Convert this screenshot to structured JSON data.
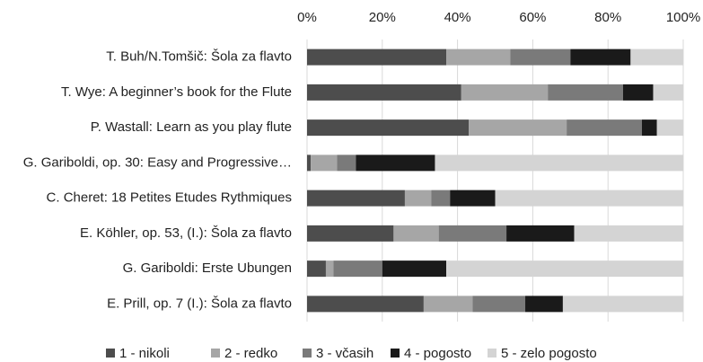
{
  "chart_data": {
    "type": "stacked_barh",
    "categories": [
      "T. Buh/N.Tomšič: Šola za flavto",
      "T. Wye: A beginner’s book for the Flute",
      "P. Wastall: Learn as you play flute",
      "G. Gariboldi, op. 30: Easy and Progressive…",
      "C. Cheret: 18 Petites Etudes Rythmiques",
      "E. Köhler, op. 53, (I.): Šola za flavto",
      "G. Gariboldi: Erste Ubungen",
      "E. Prill, op. 7 (I.): Šola za flavto"
    ],
    "series": [
      {
        "name": "1 - nikoli",
        "color": "#4d4d4d",
        "values": [
          37,
          41,
          43,
          1,
          26,
          23,
          5,
          31
        ]
      },
      {
        "name": "2 - redko",
        "color": "#a6a6a6",
        "values": [
          17,
          23,
          26,
          7,
          7,
          12,
          2,
          13
        ]
      },
      {
        "name": "3 - včasih",
        "color": "#7a7a7a",
        "values": [
          16,
          20,
          20,
          5,
          5,
          18,
          13,
          14
        ]
      },
      {
        "name": "4 - pogosto",
        "color": "#1a1a1a",
        "values": [
          16,
          8,
          4,
          21,
          12,
          18,
          17,
          10
        ]
      },
      {
        "name": "5 - zelo pogosto",
        "color": "#d4d4d4",
        "values": [
          14,
          8,
          7,
          66,
          50,
          29,
          63,
          32
        ]
      }
    ],
    "xlim": [
      0,
      100
    ],
    "xticks": [
      {
        "value": 0,
        "label": "0%"
      },
      {
        "value": 20,
        "label": "20%"
      },
      {
        "value": 40,
        "label": "40%"
      },
      {
        "value": 60,
        "label": "60%"
      },
      {
        "value": 80,
        "label": "80%"
      },
      {
        "value": 100,
        "label": "100%"
      }
    ],
    "grid": true,
    "legend": "bottom"
  }
}
